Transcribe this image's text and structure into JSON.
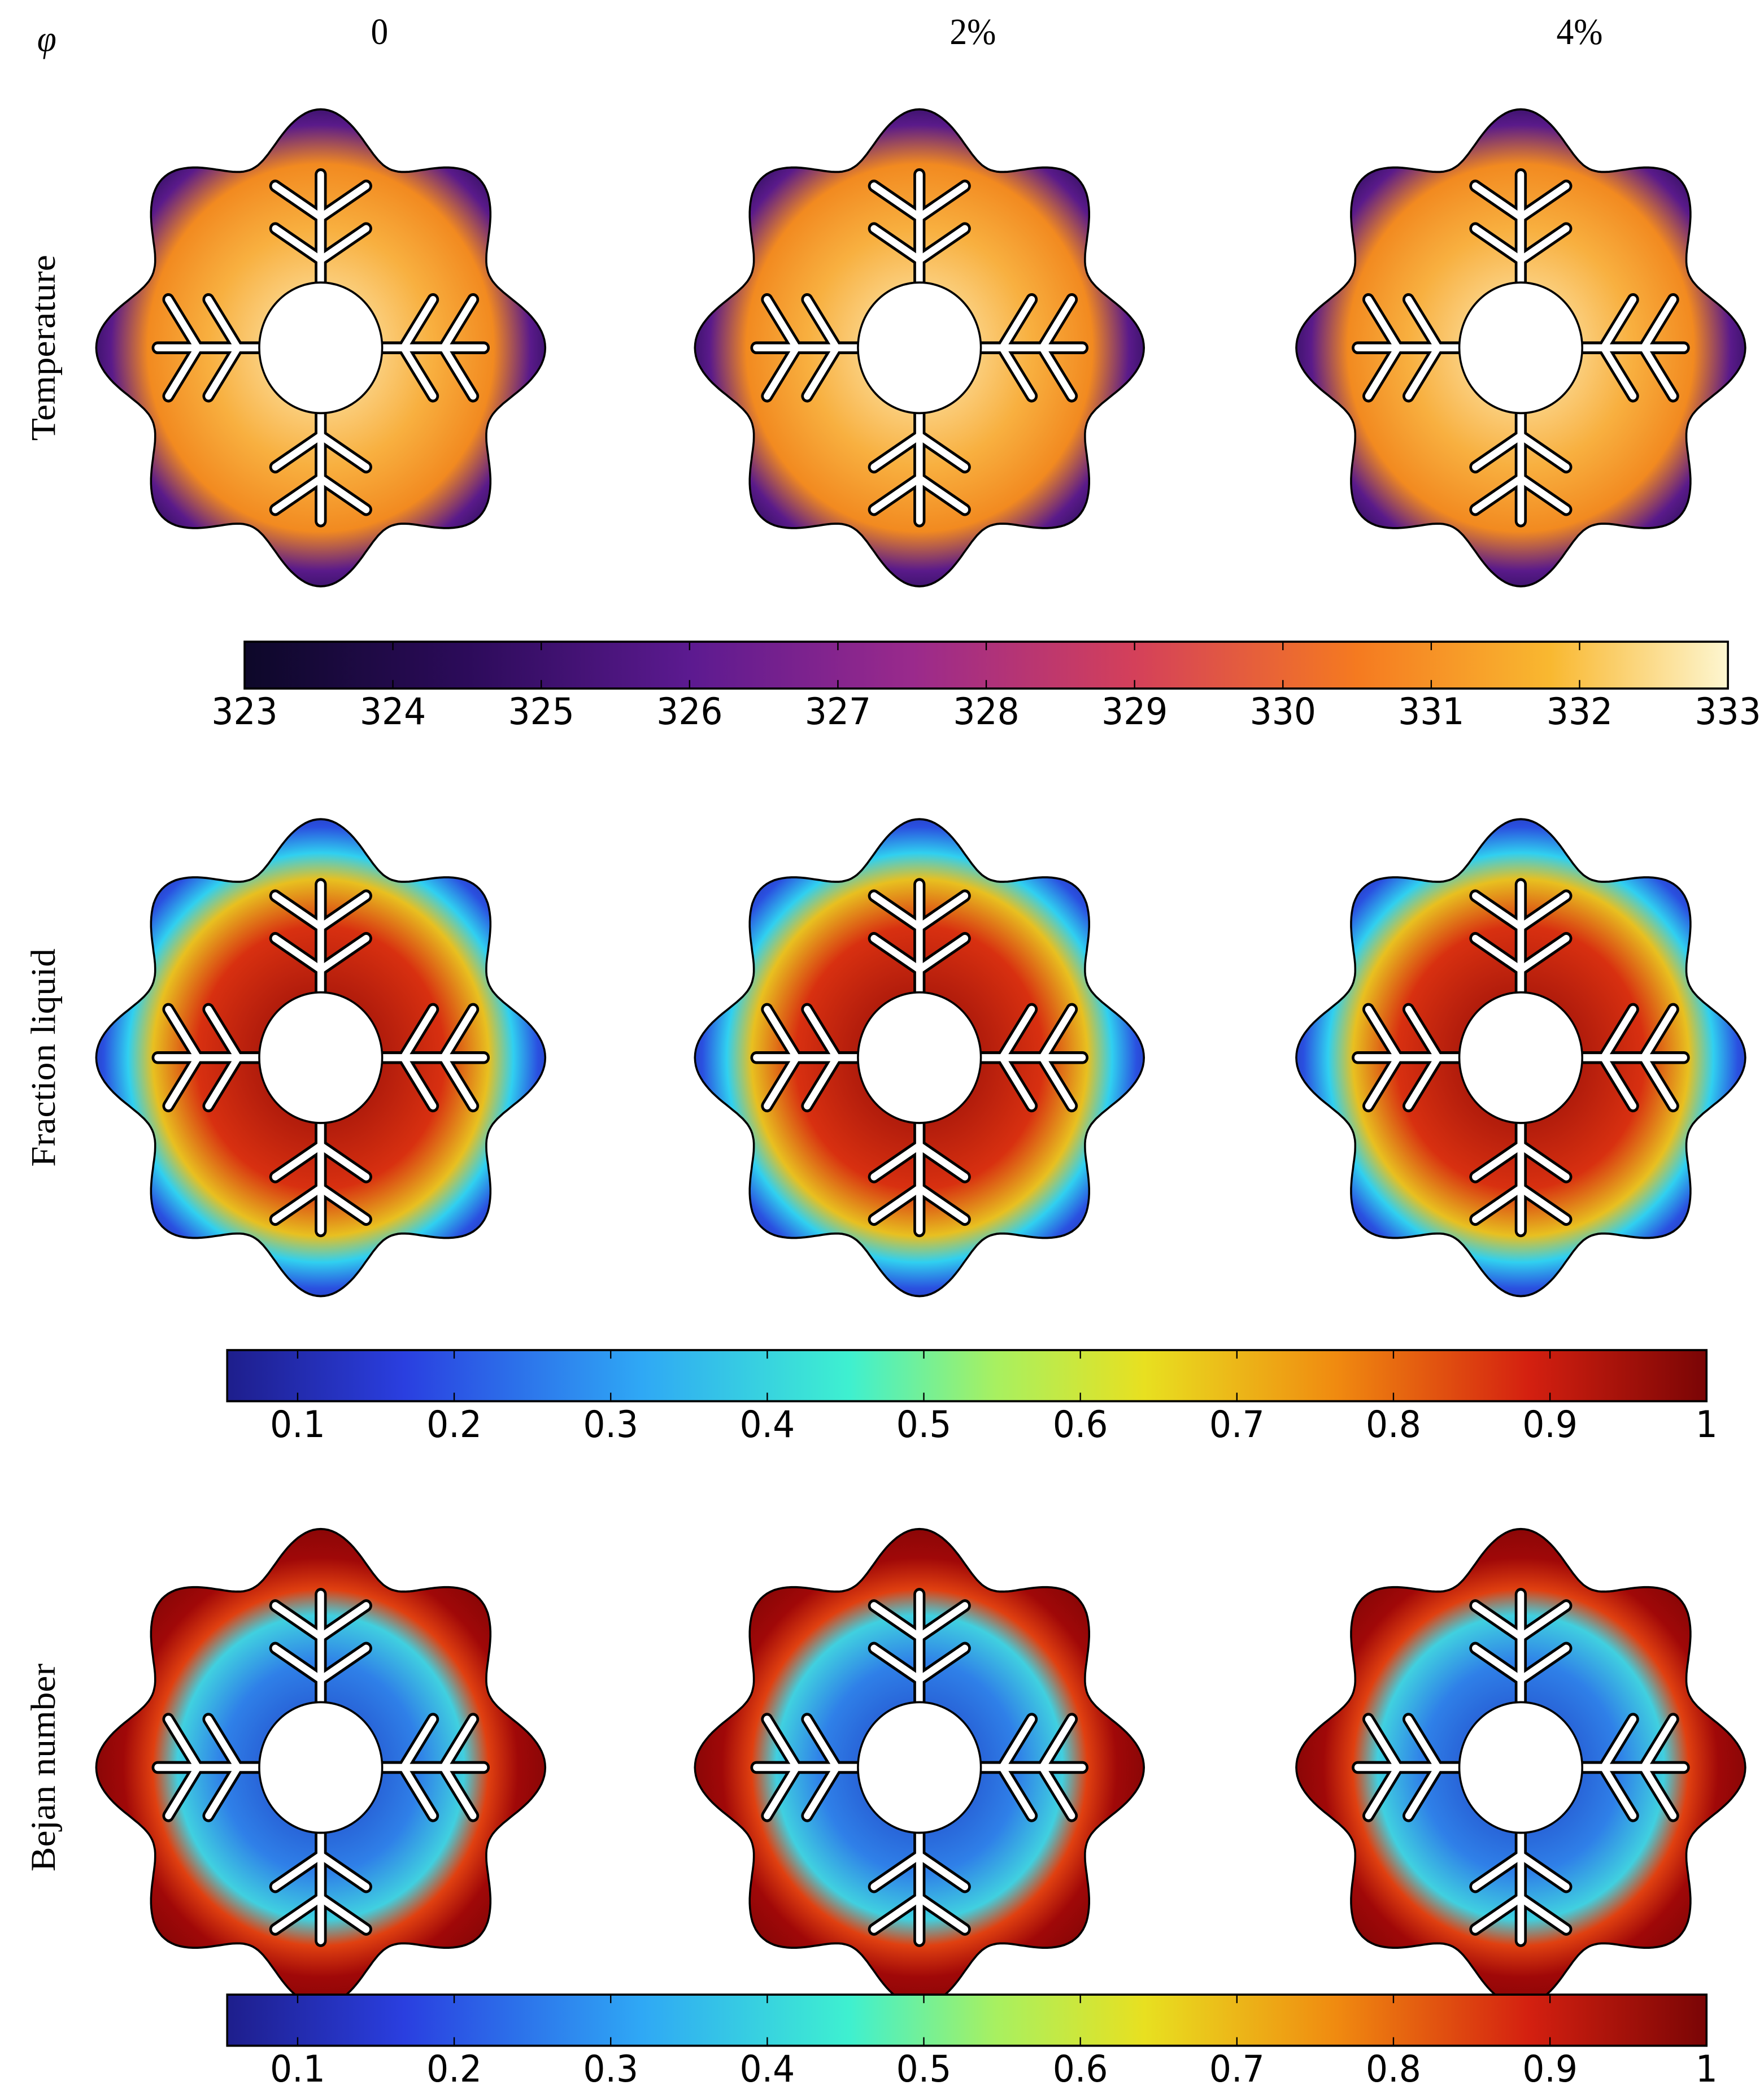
{
  "header": {
    "symbol": "φ",
    "columns": [
      "0",
      "2%",
      "4%"
    ]
  },
  "rows": [
    {
      "label": "Temperature",
      "colorbar": {
        "lim": [
          323,
          333
        ],
        "ticks": [
          323,
          324,
          325,
          326,
          327,
          328,
          329,
          330,
          331,
          332,
          333
        ]
      }
    },
    {
      "label": "Fraction liquid",
      "colorbar": {
        "lim": [
          0.055,
          1
        ],
        "ticks": [
          0.1,
          0.2,
          0.3,
          0.4,
          0.5,
          0.6,
          0.7,
          0.8,
          0.9,
          1
        ]
      }
    },
    {
      "label": "Bejan number",
      "colorbar": {
        "lim": [
          0.055,
          1
        ],
        "ticks": [
          0.1,
          0.2,
          0.3,
          0.4,
          0.5,
          0.6,
          0.7,
          0.8,
          0.9,
          1
        ]
      }
    }
  ]
}
